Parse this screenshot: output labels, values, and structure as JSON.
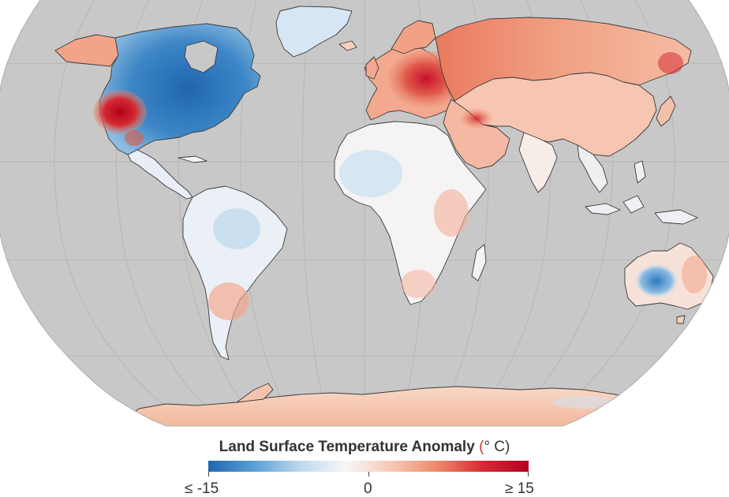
{
  "map": {
    "projection": "robinson",
    "ocean_color": "#c8c8c8",
    "graticule_color": "#b6b6b6",
    "coastline_color": "#3a3a3a",
    "land_base_color": "#f6f2ef"
  },
  "legend": {
    "title": "Land Surface Temperature Anomaly",
    "unit_open": "(",
    "unit_symbol": "°",
    "unit_letter": "C)",
    "min_label": "≤ -15",
    "mid_label": "0",
    "max_label": "≥ 15",
    "scale_min": -15,
    "scale_mid": 0,
    "scale_max": 15,
    "color_stops": [
      "#1f66b0",
      "#5a9fd4",
      "#bcd9ee",
      "#f7f7f7",
      "#f7c9b3",
      "#ee8a6a",
      "#d62a32",
      "#b3001e"
    ]
  },
  "regions": [
    {
      "name": "North America",
      "anomaly": "cold"
    },
    {
      "name": "Western United States",
      "anomaly": "hot"
    },
    {
      "name": "Greenland",
      "anomaly": "mild cold"
    },
    {
      "name": "Alaska",
      "anomaly": "warm"
    },
    {
      "name": "Europe",
      "anomaly": "hot"
    },
    {
      "name": "Russia",
      "anomaly": "warm"
    },
    {
      "name": "Middle East",
      "anomaly": "hot"
    },
    {
      "name": "Africa",
      "anomaly": "neutral"
    },
    {
      "name": "South America",
      "anomaly": "neutral"
    },
    {
      "name": "Australia",
      "anomaly": "cold center"
    },
    {
      "name": "Antarctica",
      "anomaly": "warm"
    }
  ]
}
